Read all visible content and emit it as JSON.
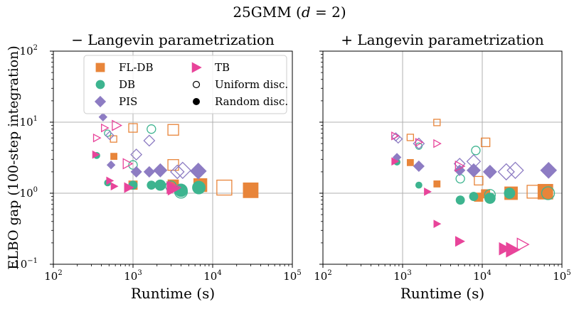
{
  "figure": {
    "suptitle": "25GMM (d = 2)",
    "suptitle_parts": {
      "prefix": "25GMM (",
      "var": "d",
      "suffix": " = 2)"
    },
    "ylabel": "ELBO gap (100-step integration)",
    "xlabel": "Runtime (s)"
  },
  "colors": {
    "FL-DB": "#e8853a",
    "DB": "#3db48f",
    "PIS": "#8d7cc3",
    "TB": "#e8449a",
    "grid": "#b0b0b0"
  },
  "legend": {
    "location": "upper-left of left panel",
    "items": [
      {
        "label": "FL-DB",
        "marker": "square",
        "color_key": "FL-DB"
      },
      {
        "label": "TB",
        "marker": "triangle-right",
        "color_key": "TB"
      },
      {
        "label": "DB",
        "marker": "circle",
        "color_key": "DB"
      },
      {
        "label": "Uniform disc.",
        "marker": "open-circle",
        "color_key": "none"
      },
      {
        "label": "PIS",
        "marker": "diamond",
        "color_key": "PIS"
      },
      {
        "label": "Random disc.",
        "marker": "filled-circle",
        "color_key": "none"
      }
    ]
  },
  "chart_data": [
    {
      "type": "scatter",
      "title": "− Langevin parametrization",
      "xlabel": "Runtime (s)",
      "ylabel": "ELBO gap (100-step integration)",
      "xscale": "log",
      "yscale": "log",
      "xlim": [
        100,
        100000
      ],
      "ylim": [
        0.1,
        100
      ],
      "xticks": [
        {
          "base": "10",
          "exp": "2"
        },
        {
          "base": "10",
          "exp": "3"
        },
        {
          "base": "10",
          "exp": "4"
        },
        {
          "base": "10",
          "exp": "5"
        }
      ],
      "yticks": [
        {
          "base": "10",
          "exp": "−1"
        },
        {
          "base": "10",
          "exp": "0"
        },
        {
          "base": "10",
          "exp": "1"
        },
        {
          "base": "10",
          "exp": "2"
        }
      ],
      "grid": true,
      "series": [
        {
          "name": "FL-DB",
          "marker": "square",
          "points": [
            {
              "x": 570,
              "y": 5.8,
              "filled": false,
              "size": 1
            },
            {
              "x": 575,
              "y": 3.3,
              "filled": true,
              "size": 1
            },
            {
              "x": 1000,
              "y": 8.3,
              "filled": false,
              "size": 2
            },
            {
              "x": 1000,
              "y": 1.3,
              "filled": true,
              "size": 2
            },
            {
              "x": 3200,
              "y": 7.8,
              "filled": false,
              "size": 3
            },
            {
              "x": 3200,
              "y": 2.5,
              "filled": false,
              "size": 3
            },
            {
              "x": 3200,
              "y": 1.3,
              "filled": true,
              "size": 3
            },
            {
              "x": 7000,
              "y": 1.3,
              "filled": false,
              "size": 4
            },
            {
              "x": 7000,
              "y": 1.3,
              "filled": true,
              "size": 4
            },
            {
              "x": 14000,
              "y": 1.2,
              "filled": false,
              "size": 5
            },
            {
              "x": 30000,
              "y": 1.1,
              "filled": true,
              "size": 5
            }
          ]
        },
        {
          "name": "DB",
          "marker": "circle",
          "points": [
            {
              "x": 350,
              "y": 3.4,
              "filled": true,
              "size": 1
            },
            {
              "x": 480,
              "y": 7.0,
              "filled": false,
              "size": 1
            },
            {
              "x": 480,
              "y": 1.4,
              "filled": true,
              "size": 1
            },
            {
              "x": 1000,
              "y": 2.5,
              "filled": false,
              "size": 2
            },
            {
              "x": 1000,
              "y": 1.3,
              "filled": true,
              "size": 2
            },
            {
              "x": 1700,
              "y": 8.0,
              "filled": false,
              "size": 2
            },
            {
              "x": 1700,
              "y": 1.3,
              "filled": true,
              "size": 2
            },
            {
              "x": 2200,
              "y": 1.3,
              "filled": true,
              "size": 3
            },
            {
              "x": 3000,
              "y": 1.25,
              "filled": false,
              "size": 3
            },
            {
              "x": 4000,
              "y": 1.1,
              "filled": true,
              "size": 4
            },
            {
              "x": 4000,
              "y": 1.05,
              "filled": false,
              "size": 4
            },
            {
              "x": 6700,
              "y": 1.2,
              "filled": true,
              "size": 4
            }
          ]
        },
        {
          "name": "PIS",
          "marker": "diamond",
          "points": [
            {
              "x": 420,
              "y": 11.8,
              "filled": true,
              "size": 1
            },
            {
              "x": 510,
              "y": 6.5,
              "filled": false,
              "size": 1
            },
            {
              "x": 530,
              "y": 2.5,
              "filled": true,
              "size": 1
            },
            {
              "x": 1100,
              "y": 3.5,
              "filled": false,
              "size": 2
            },
            {
              "x": 1100,
              "y": 2.0,
              "filled": true,
              "size": 2
            },
            {
              "x": 1600,
              "y": 5.5,
              "filled": false,
              "size": 2
            },
            {
              "x": 1600,
              "y": 2.0,
              "filled": true,
              "size": 2
            },
            {
              "x": 2200,
              "y": 2.1,
              "filled": true,
              "size": 3
            },
            {
              "x": 3600,
              "y": 2.0,
              "filled": false,
              "size": 3
            },
            {
              "x": 4200,
              "y": 2.1,
              "filled": false,
              "size": 4
            },
            {
              "x": 6600,
              "y": 2.05,
              "filled": true,
              "size": 4
            }
          ]
        },
        {
          "name": "TB",
          "marker": "triangle-right",
          "points": [
            {
              "x": 340,
              "y": 3.5,
              "filled": true,
              "size": 1
            },
            {
              "x": 350,
              "y": 6.0,
              "filled": false,
              "size": 1
            },
            {
              "x": 440,
              "y": 8.3,
              "filled": false,
              "size": 1
            },
            {
              "x": 510,
              "y": 1.5,
              "filled": true,
              "size": 1
            },
            {
              "x": 580,
              "y": 1.25,
              "filled": true,
              "size": 1
            },
            {
              "x": 620,
              "y": 9.0,
              "filled": false,
              "size": 2
            },
            {
              "x": 850,
              "y": 2.6,
              "filled": false,
              "size": 2
            },
            {
              "x": 880,
              "y": 1.2,
              "filled": true,
              "size": 2
            },
            {
              "x": 3100,
              "y": 1.2,
              "filled": true,
              "size": 3
            },
            {
              "x": 3200,
              "y": 1.15,
              "filled": true,
              "size": 3
            },
            {
              "x": 3300,
              "y": 1.2,
              "filled": false,
              "size": 3
            }
          ]
        }
      ]
    },
    {
      "type": "scatter",
      "title": "+ Langevin parametrization",
      "xlabel": "Runtime (s)",
      "ylabel": "",
      "xscale": "log",
      "yscale": "log",
      "xlim": [
        100,
        100000
      ],
      "ylim": [
        0.1,
        100
      ],
      "xticks": [
        {
          "base": "10",
          "exp": "2"
        },
        {
          "base": "10",
          "exp": "3"
        },
        {
          "base": "10",
          "exp": "4"
        },
        {
          "base": "10",
          "exp": "5"
        }
      ],
      "grid": true,
      "series": [
        {
          "name": "FL-DB",
          "marker": "square",
          "points": [
            {
              "x": 1250,
              "y": 6.1,
              "filled": false,
              "size": 1
            },
            {
              "x": 1250,
              "y": 2.7,
              "filled": true,
              "size": 1
            },
            {
              "x": 2700,
              "y": 9.9,
              "filled": false,
              "size": 1
            },
            {
              "x": 2700,
              "y": 1.35,
              "filled": true,
              "size": 1
            },
            {
              "x": 9000,
              "y": 1.5,
              "filled": false,
              "size": 2
            },
            {
              "x": 9000,
              "y": 0.88,
              "filled": true,
              "size": 2
            },
            {
              "x": 11000,
              "y": 5.2,
              "filled": false,
              "size": 2
            },
            {
              "x": 11000,
              "y": 0.98,
              "filled": true,
              "size": 2
            },
            {
              "x": 23000,
              "y": 1.0,
              "filled": false,
              "size": 3
            },
            {
              "x": 23000,
              "y": 1.0,
              "filled": true,
              "size": 4
            },
            {
              "x": 44000,
              "y": 1.05,
              "filled": false,
              "size": 4
            },
            {
              "x": 62000,
              "y": 1.05,
              "filled": true,
              "size": 5
            }
          ]
        },
        {
          "name": "DB",
          "marker": "circle",
          "points": [
            {
              "x": 850,
              "y": 2.75,
              "filled": true,
              "size": 1
            },
            {
              "x": 1600,
              "y": 4.6,
              "filled": false,
              "size": 1
            },
            {
              "x": 1600,
              "y": 1.3,
              "filled": true,
              "size": 1
            },
            {
              "x": 5300,
              "y": 1.6,
              "filled": false,
              "size": 2
            },
            {
              "x": 5300,
              "y": 0.8,
              "filled": true,
              "size": 2
            },
            {
              "x": 7800,
              "y": 0.9,
              "filled": true,
              "size": 2
            },
            {
              "x": 8300,
              "y": 4.0,
              "filled": false,
              "size": 2
            },
            {
              "x": 12500,
              "y": 0.85,
              "filled": true,
              "size": 3
            },
            {
              "x": 12500,
              "y": 0.95,
              "filled": false,
              "size": 3
            },
            {
              "x": 22000,
              "y": 1.0,
              "filled": true,
              "size": 3
            },
            {
              "x": 67000,
              "y": 1.0,
              "filled": false,
              "size": 4
            }
          ]
        },
        {
          "name": "PIS",
          "marker": "diamond",
          "points": [
            {
              "x": 820,
              "y": 6.2,
              "filled": false,
              "size": 1
            },
            {
              "x": 850,
              "y": 3.2,
              "filled": true,
              "size": 1
            },
            {
              "x": 880,
              "y": 5.8,
              "filled": false,
              "size": 1
            },
            {
              "x": 1600,
              "y": 5.0,
              "filled": false,
              "size": 2
            },
            {
              "x": 1600,
              "y": 2.4,
              "filled": true,
              "size": 2
            },
            {
              "x": 5200,
              "y": 2.6,
              "filled": false,
              "size": 2
            },
            {
              "x": 5200,
              "y": 2.1,
              "filled": true,
              "size": 2
            },
            {
              "x": 7800,
              "y": 2.8,
              "filled": false,
              "size": 3
            },
            {
              "x": 7800,
              "y": 2.1,
              "filled": true,
              "size": 3
            },
            {
              "x": 12500,
              "y": 2.0,
              "filled": true,
              "size": 3
            },
            {
              "x": 20000,
              "y": 2.0,
              "filled": false,
              "size": 4
            },
            {
              "x": 26000,
              "y": 2.1,
              "filled": false,
              "size": 4
            },
            {
              "x": 68000,
              "y": 2.1,
              "filled": true,
              "size": 4
            }
          ]
        },
        {
          "name": "TB",
          "marker": "triangle-right",
          "points": [
            {
              "x": 800,
              "y": 6.4,
              "filled": false,
              "size": 1
            },
            {
              "x": 800,
              "y": 2.8,
              "filled": true,
              "size": 1
            },
            {
              "x": 1600,
              "y": 5.2,
              "filled": false,
              "size": 1
            },
            {
              "x": 2050,
              "y": 1.05,
              "filled": true,
              "size": 1
            },
            {
              "x": 2700,
              "y": 5.0,
              "filled": false,
              "size": 1
            },
            {
              "x": 2700,
              "y": 0.37,
              "filled": true,
              "size": 1
            },
            {
              "x": 5200,
              "y": 2.4,
              "filled": false,
              "size": 2
            },
            {
              "x": 5200,
              "y": 0.21,
              "filled": true,
              "size": 2
            },
            {
              "x": 19000,
              "y": 0.165,
              "filled": true,
              "size": 3
            },
            {
              "x": 24000,
              "y": 0.16,
              "filled": true,
              "size": 4
            },
            {
              "x": 32000,
              "y": 0.19,
              "filled": false,
              "size": 3
            }
          ]
        }
      ]
    }
  ]
}
